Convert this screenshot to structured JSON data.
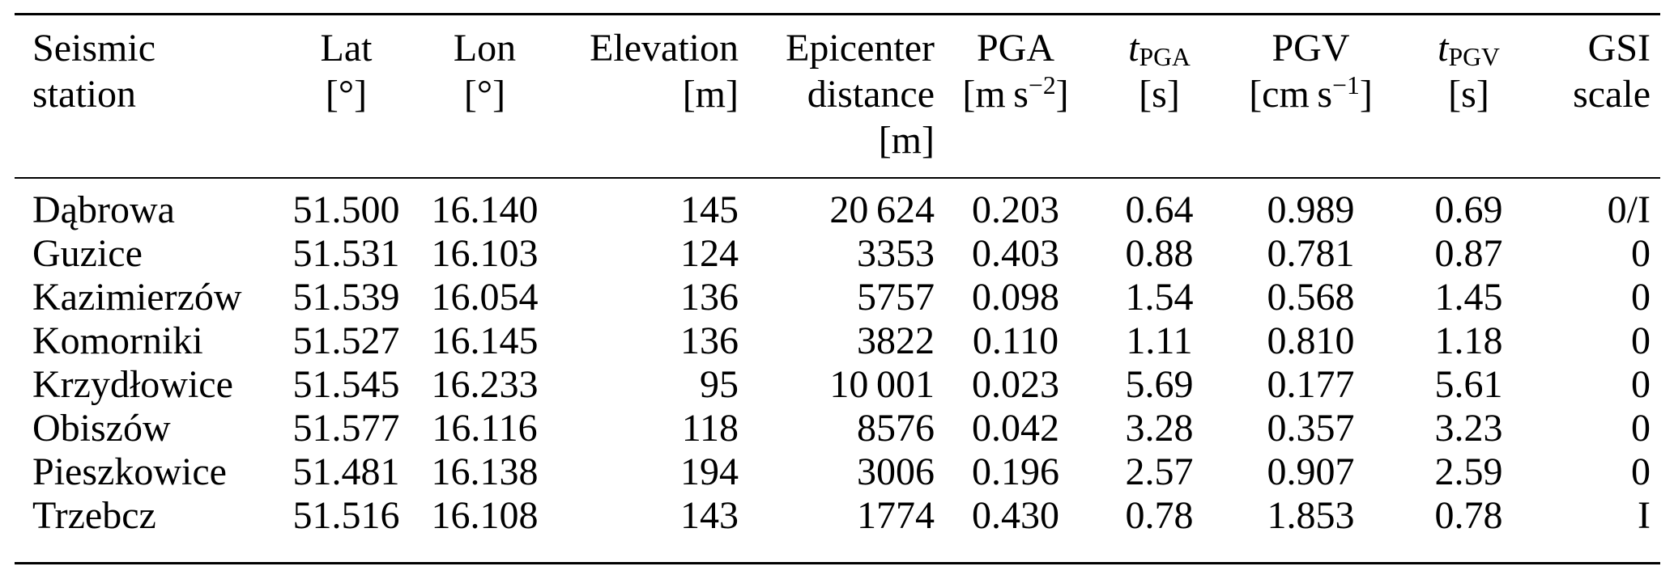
{
  "table": {
    "title": "Seismic stations table",
    "column_order": [
      "station",
      "lat",
      "lon",
      "elevation",
      "distance",
      "pga",
      "t_pga",
      "pgv",
      "t_pgv",
      "gsi"
    ],
    "header": {
      "station": {
        "line1": "Seismic",
        "line2": "station"
      },
      "lat": {
        "line1": "Lat",
        "line2": "[°]"
      },
      "lon": {
        "line1": "Lon",
        "line2": "[°]"
      },
      "elevation": {
        "line1": "Elevation",
        "line2": "[m]"
      },
      "distance": {
        "line1": "Epicenter",
        "line2": "distance",
        "line3": "[m]"
      },
      "pga": {
        "line1": "PGA",
        "unit_open": "[m s",
        "unit_sup": "−2",
        "unit_close": "]"
      },
      "t_pga": {
        "symbol": "t",
        "sub": "PGA",
        "unit": "[s]"
      },
      "pgv": {
        "line1": "PGV",
        "unit_open": "[cm s",
        "unit_sup": "−1",
        "unit_close": "]"
      },
      "t_pgv": {
        "symbol": "t",
        "sub": "PGV",
        "unit": "[s]"
      },
      "gsi": {
        "line1": "GSI",
        "line2": "scale"
      }
    },
    "rows": [
      {
        "station": "Dąbrowa",
        "lat": "51.500",
        "lon": "16.140",
        "elevation": "145",
        "distance": "20 624",
        "pga": "0.203",
        "t_pga": "0.64",
        "pgv": "0.989",
        "t_pgv": "0.69",
        "gsi": "0/I"
      },
      {
        "station": "Guzice",
        "lat": "51.531",
        "lon": "16.103",
        "elevation": "124",
        "distance": "3353",
        "pga": "0.403",
        "t_pga": "0.88",
        "pgv": "0.781",
        "t_pgv": "0.87",
        "gsi": "0"
      },
      {
        "station": "Kazimierzów",
        "lat": "51.539",
        "lon": "16.054",
        "elevation": "136",
        "distance": "5757",
        "pga": "0.098",
        "t_pga": "1.54",
        "pgv": "0.568",
        "t_pgv": "1.45",
        "gsi": "0"
      },
      {
        "station": "Komorniki",
        "lat": "51.527",
        "lon": "16.145",
        "elevation": "136",
        "distance": "3822",
        "pga": "0.110",
        "t_pga": "1.11",
        "pgv": "0.810",
        "t_pgv": "1.18",
        "gsi": "0"
      },
      {
        "station": "Krzydłowice",
        "lat": "51.545",
        "lon": "16.233",
        "elevation": "95",
        "distance": "10 001",
        "pga": "0.023",
        "t_pga": "5.69",
        "pgv": "0.177",
        "t_pgv": "5.61",
        "gsi": "0"
      },
      {
        "station": "Obiszów",
        "lat": "51.577",
        "lon": "16.116",
        "elevation": "118",
        "distance": "8576",
        "pga": "0.042",
        "t_pga": "3.28",
        "pgv": "0.357",
        "t_pgv": "3.23",
        "gsi": "0"
      },
      {
        "station": "Pieszkowice",
        "lat": "51.481",
        "lon": "16.138",
        "elevation": "194",
        "distance": "3006",
        "pga": "0.196",
        "t_pga": "2.57",
        "pgv": "0.907",
        "t_pgv": "2.59",
        "gsi": "0"
      },
      {
        "station": "Trzebcz",
        "lat": "51.516",
        "lon": "16.108",
        "elevation": "143",
        "distance": "1774",
        "pga": "0.430",
        "t_pga": "0.78",
        "pgv": "1.853",
        "t_pgv": "0.78",
        "gsi": "I"
      }
    ]
  }
}
